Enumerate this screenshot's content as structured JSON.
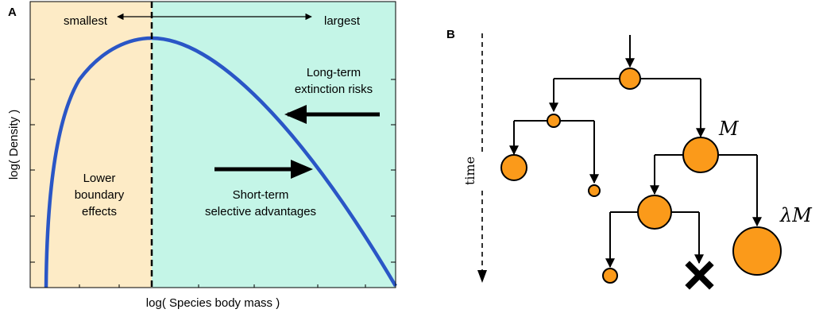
{
  "panel_a": {
    "label": "A",
    "top_left": "smallest",
    "top_right": "largest",
    "ylabel": "log( Density )",
    "xlabel": "log( Species body mass )",
    "left_region": [
      "Lower",
      "boundary",
      "effects"
    ],
    "long_term": [
      "Long-term",
      "extinction risks"
    ],
    "short_term": [
      "Short-term",
      "selective advantages"
    ],
    "colors": {
      "left_bg": "#fdebc6",
      "right_bg": "#c4f5e7",
      "curve": "#2a56c6"
    }
  },
  "panel_b": {
    "label": "B",
    "time_label": "time",
    "node_m": "M",
    "node_lambda_m": "λM",
    "colors": {
      "node": "#fb9a1a"
    }
  }
}
